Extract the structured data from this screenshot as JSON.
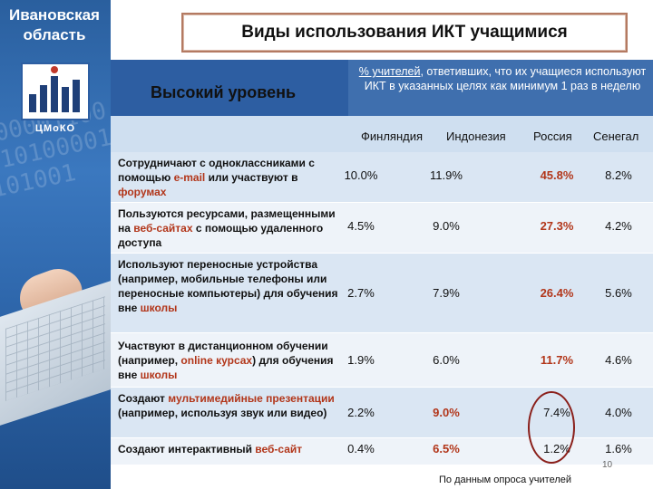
{
  "sidebar": {
    "region": "Ивановская область",
    "logo_text": "ЦМоКО",
    "digits": "100000110010101000011101001"
  },
  "title": "Виды использования ИКТ учащимися",
  "level": "Высокий уровень",
  "note": {
    "underlined": "% учителей",
    "text": ", ответивших, что их учащиеся используют ИКТ в указанных целях как минимум 1 раз в неделю"
  },
  "columns": [
    "Финляндия",
    "Индонезия",
    "Россия",
    "Сенегал"
  ],
  "rows": [
    {
      "label_parts": [
        "Сотрудничают с одноклассниками с помощью ",
        "e-mail",
        " или участвуют в ",
        "форумах"
      ],
      "values": [
        "10.0%",
        "11.9%",
        "45.8%",
        "8.2%"
      ],
      "bold_index": 2
    },
    {
      "label_parts": [
        "Пользуются ресурсами, размещенными на ",
        "веб-сайтах",
        " с помощью удаленного доступа",
        ""
      ],
      "values": [
        "4.5%",
        "9.0%",
        "27.3%",
        "4.2%"
      ],
      "bold_index": 2
    },
    {
      "label_parts": [
        "Используют переносные устройства (например, мобильные телефоны или переносные компьютеры) для обучения вне ",
        "школы",
        "",
        ""
      ],
      "values": [
        "2.7%",
        "7.9%",
        "26.4%",
        "5.6%"
      ],
      "bold_index": 2
    },
    {
      "label_parts": [
        "Участвуют в дистанционном обучении (например, ",
        "online курсах",
        ") для обучения вне ",
        "школы"
      ],
      "values": [
        "1.9%",
        "6.0%",
        "11.7%",
        "4.6%"
      ],
      "bold_index": 2
    },
    {
      "label_parts": [
        "Создают ",
        "мультимедийные презентации",
        " (например, используя звук или видео)",
        ""
      ],
      "values": [
        "2.2%",
        "9.0%",
        "7.4%",
        "4.0%"
      ],
      "bold_index": 1
    },
    {
      "label_parts": [
        "Создают интерактивный ",
        "веб-сайт",
        "",
        ""
      ],
      "values": [
        "0.4%",
        "6.5%",
        "1.2%",
        "1.6%"
      ],
      "bold_index": 1
    }
  ],
  "footer": "По данным опроса учителей",
  "page_number": "10",
  "colors": {
    "band": "#2d5ea2",
    "highlight": "#b2361a",
    "oval": "#8a1f1a"
  }
}
